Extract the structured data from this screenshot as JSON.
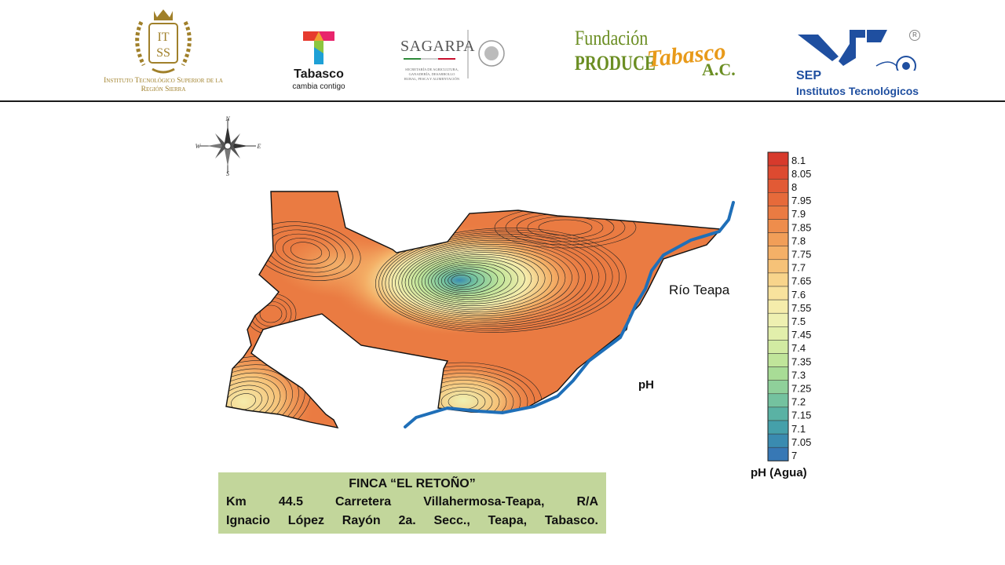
{
  "header": {
    "logos": [
      {
        "name": "itss-logo",
        "text": "Instituto Tecnológico Superior de la Región Sierra",
        "mark": "ITSS"
      },
      {
        "name": "tabasco-logo",
        "text": "Tabasco",
        "slogan": "cambia contigo"
      },
      {
        "name": "sagarpa-logo",
        "text": "SAGARPA",
        "sub": "SECRETARÍA DE AGRICULTURA, GANADERÍA, DESARROLLO RURAL, PESCA Y ALIMENTACIÓN"
      },
      {
        "name": "fundacion-produce-logo",
        "line1": "Fundación",
        "line2": "PRODUCE",
        "script": "Tabasco",
        "suffix": "A.C."
      },
      {
        "name": "sep-logo",
        "line1": "SEP",
        "line2": "Institutos Tecnológicos",
        "registered": "R"
      }
    ]
  },
  "map": {
    "compass": {
      "n": "N",
      "s": "S",
      "e": "E",
      "w": "W"
    },
    "river_label": "Río Teapa",
    "variable_label": "pH",
    "legend_title": "pH (Agua)",
    "legend_values": [
      "8.1",
      "8.05",
      "8",
      "7.95",
      "7.9",
      "7.85",
      "7.8",
      "7.75",
      "7.7",
      "7.65",
      "7.6",
      "7.55",
      "7.5",
      "7.45",
      "7.4",
      "7.35",
      "7.3",
      "7.25",
      "7.2",
      "7.15",
      "7.1",
      "7.05",
      "7"
    ],
    "legend_colors": [
      "#d73a2c",
      "#dd4a30",
      "#e25a35",
      "#e66a3a",
      "#ea7b42",
      "#ee8d4c",
      "#f19e58",
      "#f4b067",
      "#f6c278",
      "#f8d48b",
      "#f8e29d",
      "#f5ecab",
      "#eef0b1",
      "#e2efab",
      "#d2eba2",
      "#c0e59a",
      "#a8dc96",
      "#8fd09a",
      "#74c29f",
      "#5ab2a4",
      "#45a0aa",
      "#3a8bb0",
      "#3778b5"
    ]
  },
  "info": {
    "title": "FINCA “EL RETOÑO”",
    "line1": "Km 44.5 Carretera Villahermosa-Teapa, R/A",
    "line2": "Ignacio López Rayón 2a. Secc., Teapa, Tabasco."
  }
}
